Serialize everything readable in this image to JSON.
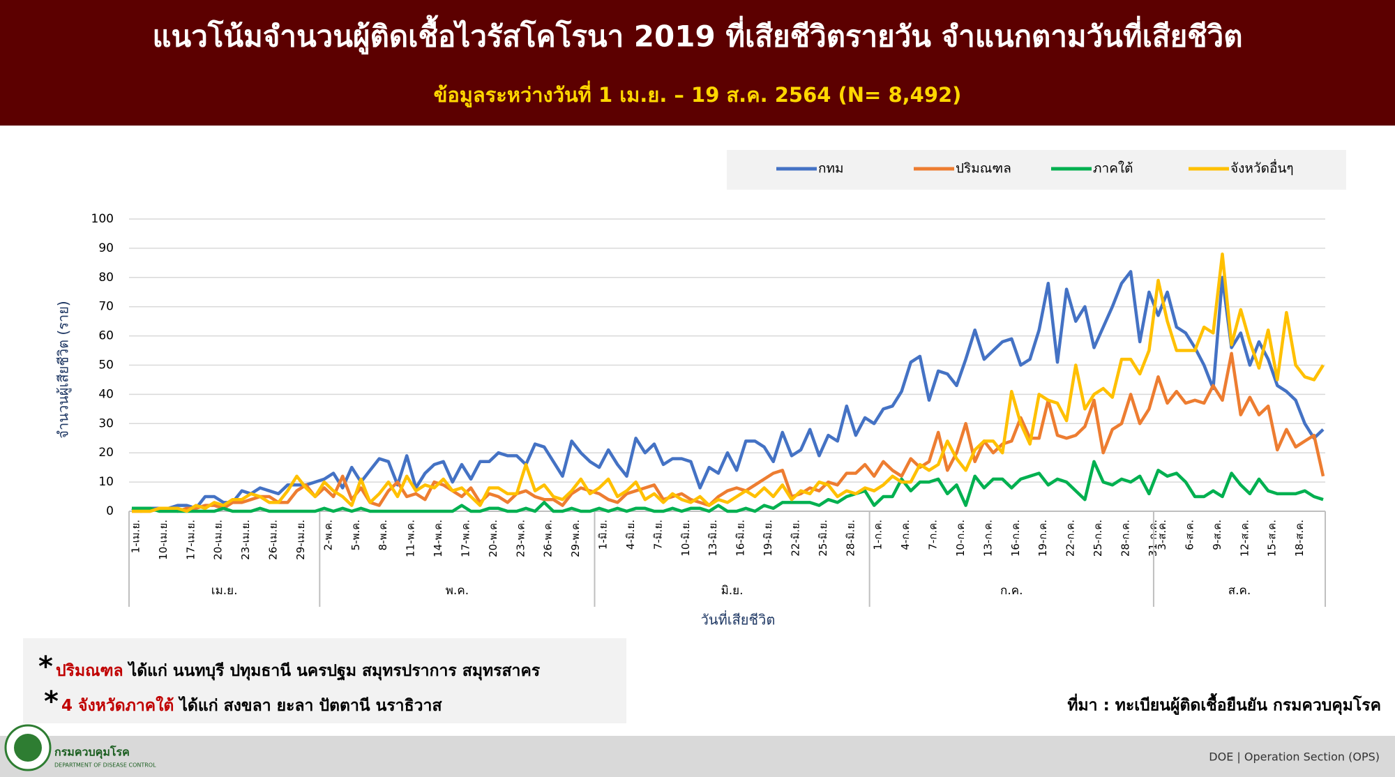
{
  "title": "แนวโน้มจำนวนผู้ติดเชื้อไวรัสโคโรนา 2019 ที่เสียชีวิตรายวัน จำแนกตามวันที่เสียชีวิต",
  "subtitle": "ข้อมูลระหว่างวันที่ 1 เม.ย. – 19 ส.ค. 2564 (N= 8,492)",
  "chart_data": {
    "type": "line",
    "y_label": "จำนวนผู้เสียชีวิต (ราย)",
    "x_label": "วันที่เสียชีวิต",
    "categories": [
      "1-เม.ย.",
      null,
      null,
      "10-เม.ย.",
      null,
      null,
      "17-เม.ย.",
      null,
      null,
      "20-เม.ย.",
      null,
      null,
      "23-เม.ย.",
      null,
      null,
      "26-เม.ย.",
      null,
      null,
      "29-เม.ย.",
      null,
      null,
      "2-พ.ค.",
      null,
      null,
      "5-พ.ค.",
      null,
      null,
      "8-พ.ค.",
      null,
      null,
      "11-พ.ค.",
      null,
      null,
      "14-พ.ค.",
      null,
      null,
      "17-พ.ค.",
      null,
      null,
      "20-พ.ค.",
      null,
      null,
      "23-พ.ค.",
      null,
      null,
      "26-พ.ค.",
      null,
      null,
      "29-พ.ค.",
      null,
      null,
      "1-มิ.ย.",
      null,
      null,
      "4-มิ.ย.",
      null,
      null,
      "7-มิ.ย.",
      null,
      null,
      "10-มิ.ย.",
      null,
      null,
      "13-มิ.ย.",
      null,
      null,
      "16-มิ.ย.",
      null,
      null,
      "19-มิ.ย.",
      null,
      null,
      "22-มิ.ย.",
      null,
      null,
      "25-มิ.ย.",
      null,
      null,
      "28-มิ.ย.",
      null,
      null,
      "1-ก.ค.",
      null,
      null,
      "4-ก.ค.",
      null,
      null,
      "7-ก.ค.",
      null,
      null,
      "10-ก.ค.",
      null,
      null,
      "13-ก.ค.",
      null,
      null,
      "16-ก.ค.",
      null,
      null,
      "19-ก.ค.",
      null,
      null,
      "22-ก.ค.",
      null,
      null,
      "25-ก.ค.",
      null,
      null,
      "28-ก.ค.",
      null,
      null,
      "31-ก.ค.",
      "3-ส.ค.",
      null,
      null,
      "6-ส.ค.",
      null,
      null,
      "9-ส.ค.",
      null,
      null,
      "12-ส.ค.",
      null,
      null,
      "15-ส.ค.",
      null,
      null,
      "18-ส.ค.",
      null,
      null,
      null
    ],
    "month_groups": [
      "เม.ย.",
      "พ.ค.",
      "มิ.ย.",
      "ก.ค.",
      "ส.ค."
    ],
    "series": [
      {
        "name": "กทม",
        "color": "#4472c4",
        "values": [
          1,
          0,
          1,
          1,
          1,
          2,
          2,
          1,
          5,
          5,
          3,
          3,
          7,
          6,
          8,
          7,
          6,
          9,
          9,
          9,
          10,
          11,
          13,
          8,
          15,
          10,
          14,
          18,
          17,
          9,
          19,
          8,
          13,
          16,
          17,
          10,
          16,
          11,
          17,
          17,
          20,
          19,
          19,
          16,
          23,
          22,
          17,
          12,
          24,
          20,
          17,
          15,
          21,
          16,
          12,
          25,
          20,
          23,
          16,
          18,
          18,
          17,
          8,
          15,
          13,
          20,
          14,
          24,
          24,
          22,
          17,
          27,
          19,
          21,
          28,
          19,
          26,
          24,
          36,
          26,
          32,
          30,
          35,
          36,
          41,
          51,
          53,
          38,
          48,
          47,
          43,
          52,
          62,
          52,
          55,
          58,
          59,
          50,
          52,
          62,
          78,
          51,
          76,
          65,
          70,
          56,
          63,
          70,
          78,
          82,
          58,
          75,
          67,
          75,
          63,
          61,
          56,
          50,
          42,
          80,
          56,
          61,
          50,
          58,
          52,
          43,
          41,
          38,
          30,
          25,
          28
        ]
      },
      {
        "name": "ปริมณฑล",
        "color": "#ed7d31",
        "values": [
          0,
          0,
          0,
          1,
          1,
          0,
          1,
          1,
          2,
          2,
          1,
          3,
          3,
          4,
          5,
          5,
          3,
          3,
          7,
          9,
          5,
          8,
          5,
          12,
          4,
          8,
          3,
          2,
          7,
          10,
          5,
          6,
          4,
          10,
          9,
          7,
          5,
          8,
          3,
          6,
          5,
          3,
          6,
          7,
          5,
          4,
          4,
          2,
          6,
          8,
          7,
          6,
          4,
          3,
          6,
          7,
          8,
          9,
          4,
          5,
          6,
          4,
          3,
          2,
          5,
          7,
          8,
          7,
          9,
          11,
          13,
          14,
          5,
          6,
          8,
          7,
          10,
          9,
          13,
          13,
          16,
          12,
          17,
          14,
          12,
          18,
          15,
          17,
          27,
          14,
          20,
          30,
          17,
          24,
          20,
          23,
          24,
          32,
          25,
          25,
          38,
          26,
          25,
          26,
          29,
          38,
          20,
          28,
          30,
          40,
          30,
          35,
          46,
          37,
          41,
          37,
          38,
          37,
          43,
          38,
          54,
          33,
          39,
          33,
          36,
          21,
          28,
          22,
          24,
          26,
          12
        ]
      },
      {
        "name": "ภาคใต้",
        "color": "#00b050",
        "values": [
          1,
          1,
          1,
          0,
          0,
          0,
          0,
          0,
          0,
          0,
          1,
          0,
          0,
          0,
          1,
          0,
          0,
          0,
          0,
          0,
          0,
          1,
          0,
          1,
          0,
          1,
          0,
          0,
          0,
          0,
          0,
          0,
          0,
          0,
          0,
          0,
          2,
          0,
          0,
          1,
          1,
          0,
          0,
          1,
          0,
          3,
          0,
          0,
          1,
          0,
          0,
          1,
          0,
          1,
          0,
          1,
          1,
          0,
          0,
          1,
          0,
          1,
          1,
          0,
          2,
          0,
          0,
          1,
          0,
          2,
          1,
          3,
          3,
          3,
          3,
          2,
          4,
          3,
          5,
          6,
          7,
          2,
          5,
          5,
          11,
          7,
          10,
          10,
          11,
          6,
          9,
          2,
          12,
          8,
          11,
          11,
          8,
          11,
          12,
          13,
          9,
          11,
          10,
          7,
          4,
          17,
          10,
          9,
          11,
          10,
          12,
          6,
          14,
          12,
          13,
          10,
          5,
          5,
          7,
          5,
          13,
          9,
          6,
          11,
          7,
          6,
          6,
          6,
          7,
          5,
          4
        ]
      },
      {
        "name": "จังหวัดอื่นๆ",
        "color": "#ffc000",
        "values": [
          0,
          0,
          0,
          1,
          1,
          1,
          0,
          2,
          1,
          3,
          2,
          4,
          4,
          6,
          5,
          3,
          3,
          7,
          12,
          8,
          5,
          10,
          7,
          5,
          2,
          11,
          3,
          6,
          10,
          5,
          12,
          7,
          9,
          8,
          11,
          7,
          8,
          5,
          2,
          8,
          8,
          6,
          6,
          16,
          7,
          9,
          5,
          4,
          7,
          11,
          6,
          8,
          11,
          5,
          7,
          10,
          4,
          6,
          3,
          6,
          4,
          3,
          5,
          2,
          4,
          3,
          5,
          7,
          5,
          8,
          5,
          9,
          4,
          7,
          6,
          10,
          9,
          5,
          7,
          6,
          8,
          7,
          9,
          12,
          10,
          10,
          16,
          14,
          16,
          24,
          18,
          14,
          21,
          24,
          24,
          20,
          41,
          30,
          23,
          40,
          38,
          37,
          31,
          50,
          35,
          40,
          42,
          39,
          52,
          52,
          47,
          55,
          79,
          65,
          55,
          55,
          55,
          63,
          61,
          88,
          57,
          69,
          58,
          49,
          62,
          45,
          68,
          50,
          46,
          45,
          50
        ]
      }
    ],
    "ylim": [
      0,
      100
    ],
    "yticks": [
      0,
      10,
      20,
      30,
      40,
      50,
      60,
      70,
      80,
      90,
      100
    ],
    "grid": true,
    "legend": "top-right"
  },
  "notes": [
    {
      "marker": "*",
      "highlight": "ปริมณฑล",
      "text": " ได้แก่ นนทบุรี ปทุมธานี นครปฐม สมุทรปราการ สมุทรสาคร"
    },
    {
      "marker": "*",
      "highlight": "4 จังหวัดภาคใต้",
      "text": " ได้แก่ สงขลา ยะลา ปัตตานี นราธิวาส"
    }
  ],
  "source": "ที่มา : ทะเบียนผู้ติดเชื้อยืนยัน กรมควบคุมโรค",
  "footer": {
    "org": "กรมควบคุมโรค",
    "org_en": "DEPARTMENT OF DISEASE CONTROL",
    "credit": "DOE | Operation Section (OPS)"
  }
}
